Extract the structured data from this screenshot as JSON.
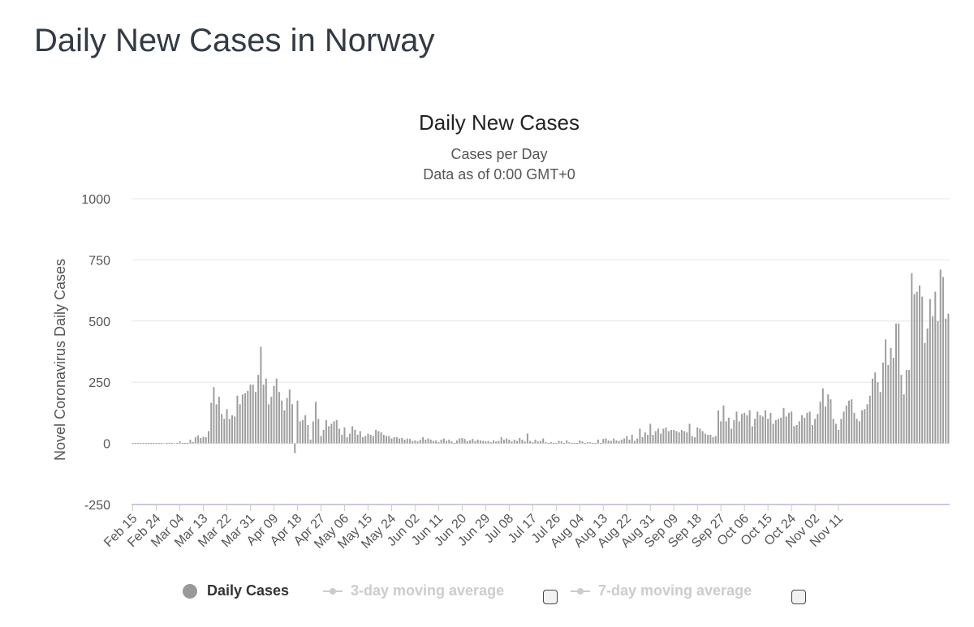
{
  "page_title": "Daily New Cases in Norway",
  "legend": {
    "daily": "Daily Cases",
    "ma3": "3-day moving average",
    "ma7": "7-day moving average"
  },
  "colors": {
    "bar": "#9e9e9e",
    "grid": "#e6e6e6",
    "zero_line": "#c9c9e6",
    "text": "#555555",
    "inactive": "#cccccc"
  },
  "chart_data": {
    "type": "bar",
    "title": "Daily New Cases",
    "subtitle": [
      "Cases per Day",
      "Data as of 0:00 GMT+0"
    ],
    "xlabel": "",
    "ylabel": "Novel Coronavirus Daily Cases",
    "ylim": [
      -250,
      1000
    ],
    "yticks": [
      1000,
      750,
      500,
      250,
      0,
      -250
    ],
    "grid": true,
    "legend_position": "bottom",
    "x_start": "Feb 15",
    "x_tick_labels": [
      "Feb 15",
      "Feb 24",
      "Mar 04",
      "Mar 13",
      "Mar 22",
      "Mar 31",
      "Apr 09",
      "Apr 18",
      "Apr 27",
      "May 06",
      "May 15",
      "May 24",
      "Jun 02",
      "Jun 11",
      "Jun 20",
      "Jun 29",
      "Jul 08",
      "Jul 17",
      "Jul 26",
      "Aug 04",
      "Aug 13",
      "Aug 22",
      "Aug 31",
      "Sep 09",
      "Sep 18",
      "Sep 27",
      "Oct 06",
      "Oct 15",
      "Oct 24",
      "Nov 02",
      "Nov 11"
    ],
    "x_tick_interval_days": 9,
    "series": [
      {
        "name": "Daily Cases",
        "values": [
          0,
          0,
          0,
          0,
          0,
          0,
          0,
          0,
          0,
          0,
          0,
          0,
          1,
          0,
          0,
          0,
          1,
          0,
          8,
          0,
          0,
          0,
          15,
          6,
          25,
          33,
          22,
          27,
          25,
          50,
          166,
          230,
          160,
          190,
          120,
          100,
          140,
          100,
          115,
          110,
          195,
          160,
          200,
          205,
          215,
          240,
          240,
          210,
          280,
          395,
          240,
          265,
          160,
          190,
          235,
          265,
          210,
          175,
          135,
          185,
          220,
          160,
          -40,
          175,
          90,
          95,
          115,
          75,
          15,
          90,
          170,
          100,
          30,
          55,
          95,
          70,
          80,
          90,
          95,
          60,
          35,
          65,
          25,
          40,
          70,
          55,
          35,
          50,
          25,
          30,
          40,
          35,
          30,
          55,
          50,
          45,
          35,
          30,
          30,
          20,
          25,
          25,
          20,
          22,
          15,
          20,
          18,
          10,
          12,
          8,
          15,
          25,
          15,
          20,
          15,
          10,
          12,
          5,
          15,
          20,
          10,
          15,
          8,
          0,
          12,
          20,
          22,
          18,
          10,
          12,
          18,
          10,
          15,
          12,
          10,
          8,
          10,
          5,
          12,
          8,
          10,
          25,
          15,
          20,
          15,
          8,
          15,
          10,
          22,
          15,
          8,
          40,
          10,
          5,
          15,
          8,
          10,
          20,
          5,
          0,
          5,
          0,
          0,
          10,
          8,
          0,
          12,
          5,
          0,
          0,
          0,
          12,
          8,
          0,
          5,
          5,
          0,
          0,
          15,
          0,
          18,
          20,
          12,
          10,
          20,
          12,
          10,
          15,
          20,
          30,
          15,
          35,
          10,
          20,
          60,
          25,
          45,
          35,
          80,
          35,
          50,
          60,
          40,
          60,
          65,
          50,
          55,
          55,
          50,
          45,
          55,
          50,
          45,
          80,
          30,
          25,
          65,
          60,
          50,
          40,
          35,
          35,
          25,
          30,
          135,
          90,
          155,
          90,
          105,
          60,
          95,
          130,
          90,
          120,
          125,
          115,
          135,
          70,
          100,
          130,
          115,
          110,
          135,
          100,
          125,
          80,
          95,
          100,
          105,
          145,
          110,
          125,
          130,
          70,
          75,
          90,
          115,
          105,
          125,
          130,
          75,
          100,
          120,
          170,
          225,
          150,
          200,
          180,
          100,
          80,
          55,
          100,
          130,
          155,
          175,
          180,
          125,
          100,
          90,
          135,
          140,
          160,
          195,
          265,
          290,
          250,
          210,
          330,
          425,
          320,
          390,
          350,
          490,
          490,
          280,
          200,
          300,
          300,
          695,
          610,
          620,
          645,
          600,
          410,
          470,
          590,
          520,
          620,
          500,
          710,
          680,
          510,
          530
        ]
      }
    ]
  }
}
